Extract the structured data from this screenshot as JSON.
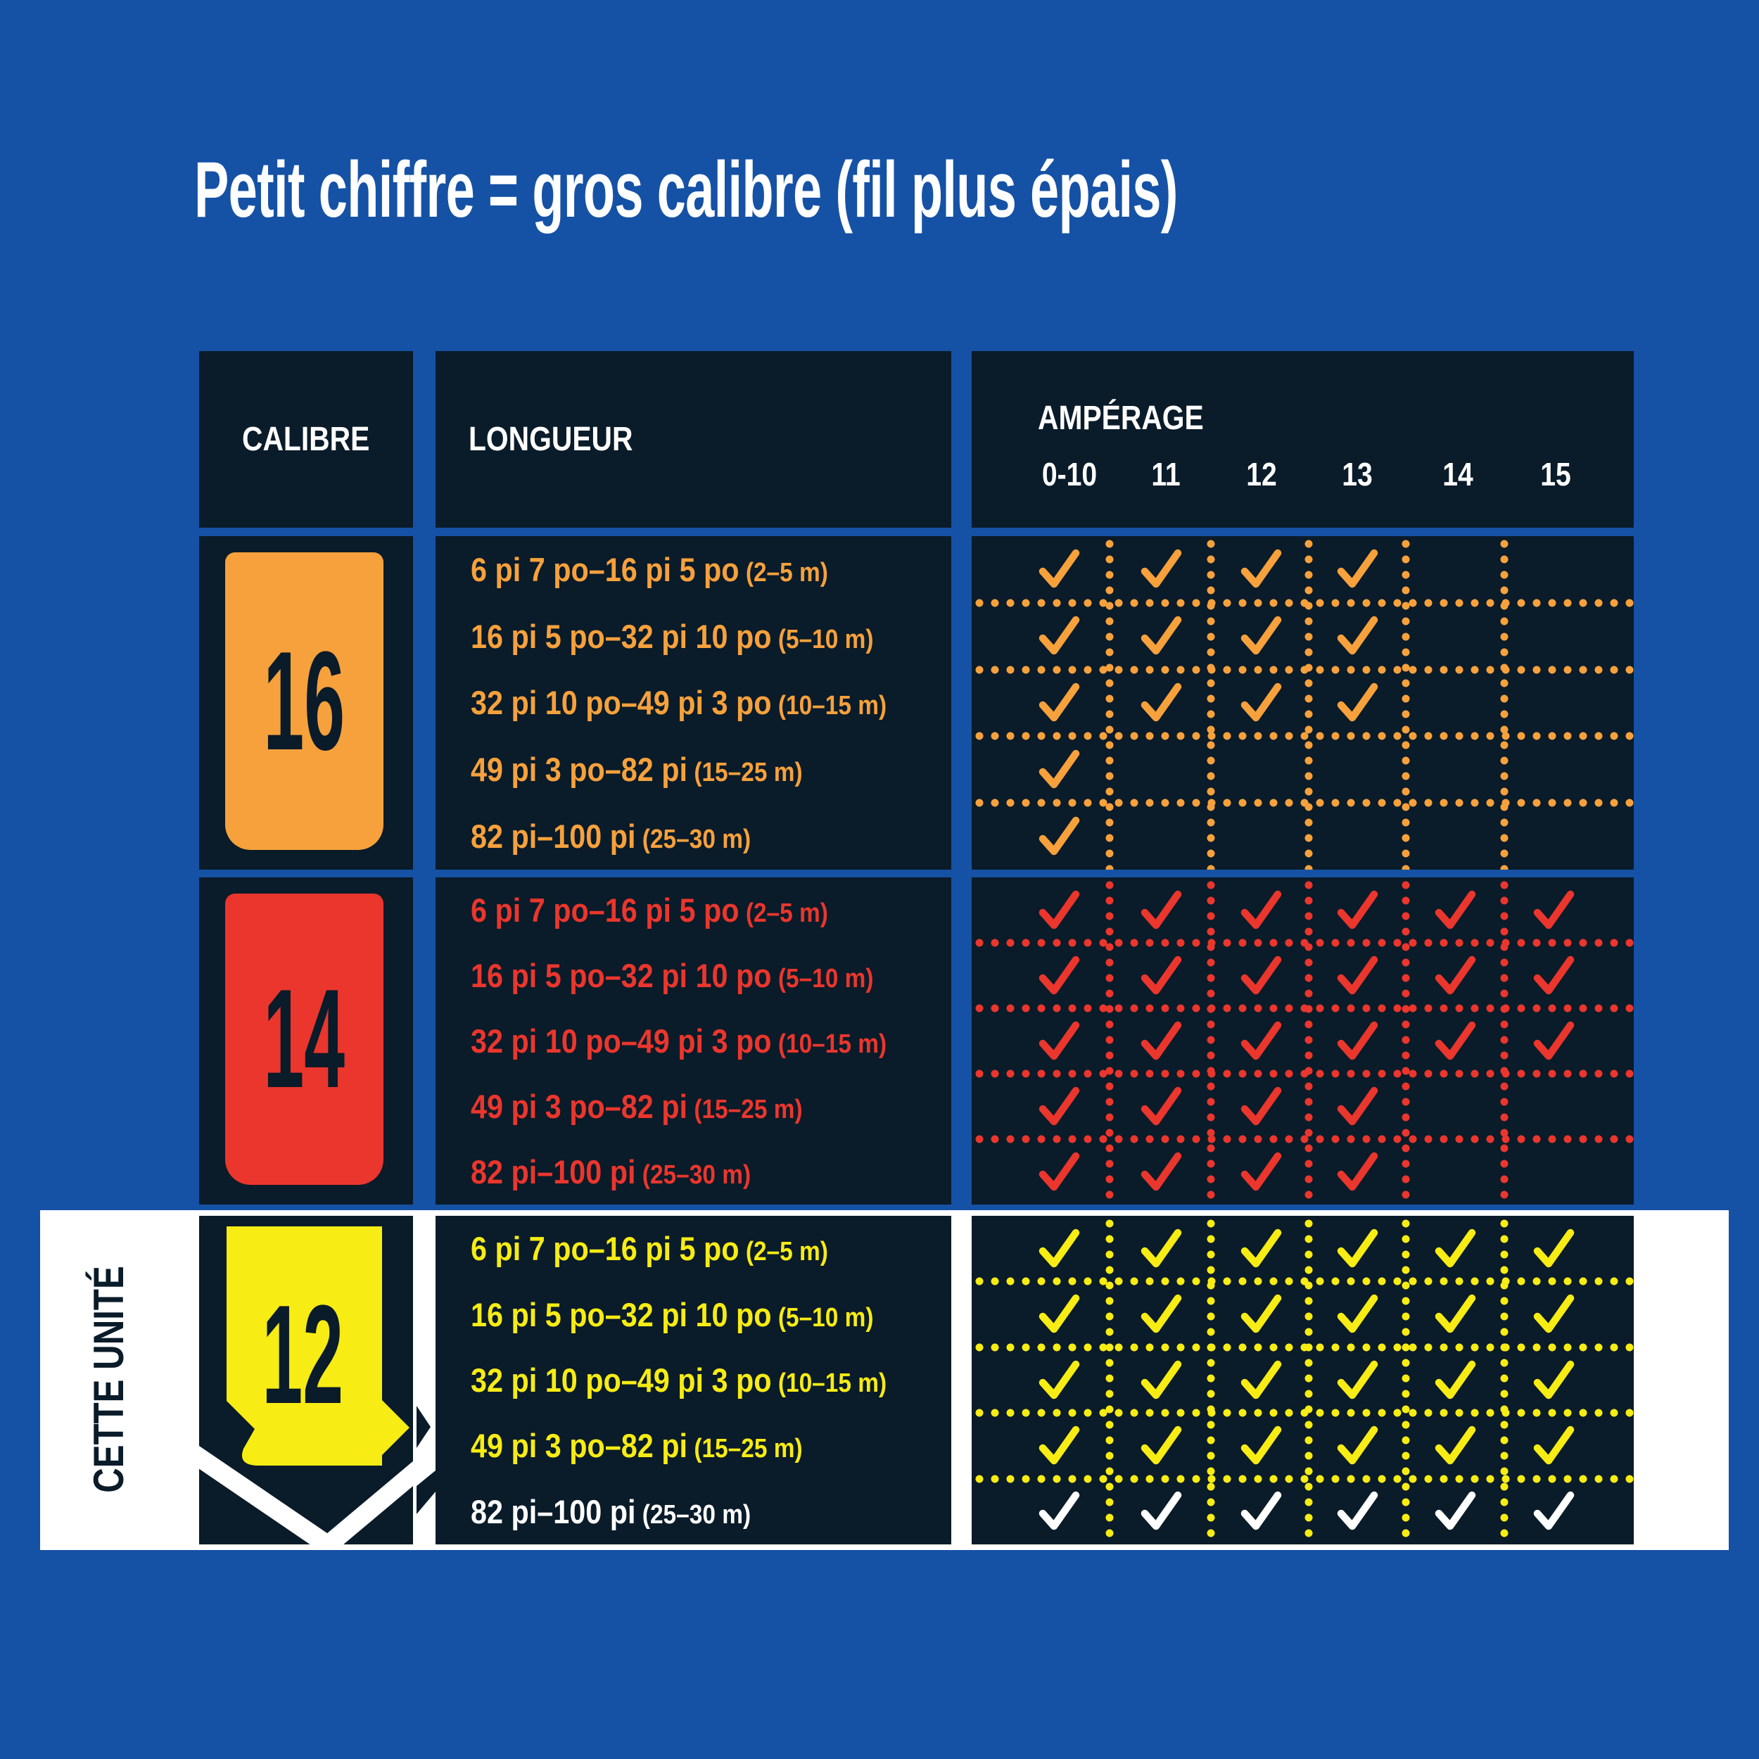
{
  "title": "Petit chiffre = gros calibre (fil plus épais)",
  "side_label": "CETTE UNITÉ",
  "colors": {
    "background": "#1552A6",
    "panel": "#0A1B29",
    "white": "#FFFFFF",
    "orange": "#F6A13C",
    "red": "#EA362D",
    "yellow": "#F7EC13"
  },
  "table": {
    "headers": {
      "calibre": "CALIBRE",
      "longueur": "LONGUEUR",
      "amperage": "AMPÉRAGE"
    },
    "amperage_columns": [
      "0-10",
      "11",
      "12",
      "13",
      "14",
      "15"
    ],
    "lengths": [
      {
        "main": "6 pi 7 po–16 pi 5 po",
        "metric": "(2–5 m)"
      },
      {
        "main": "16 pi 5 po–32 pi 10 po",
        "metric": "(5–10 m)"
      },
      {
        "main": "32 pi 10 po–49 pi 3 po",
        "metric": "(10–15 m)"
      },
      {
        "main": "49 pi 3 po–82 pi",
        "metric": "(15–25 m)"
      },
      {
        "main": "82 pi–100 pi",
        "metric": "(25–30 m)"
      }
    ],
    "gauges": [
      {
        "value": "16",
        "color": "#F6A13C",
        "highlight": false,
        "checks": [
          [
            1,
            1,
            1,
            1,
            0,
            0
          ],
          [
            1,
            1,
            1,
            1,
            0,
            0
          ],
          [
            1,
            1,
            1,
            1,
            0,
            0
          ],
          [
            1,
            0,
            0,
            0,
            0,
            0
          ],
          [
            1,
            0,
            0,
            0,
            0,
            0
          ]
        ]
      },
      {
        "value": "14",
        "color": "#EA362D",
        "highlight": false,
        "checks": [
          [
            1,
            1,
            1,
            1,
            1,
            1
          ],
          [
            1,
            1,
            1,
            1,
            1,
            1
          ],
          [
            1,
            1,
            1,
            1,
            1,
            1
          ],
          [
            1,
            1,
            1,
            1,
            0,
            0
          ],
          [
            1,
            1,
            1,
            1,
            0,
            0
          ]
        ]
      },
      {
        "value": "12",
        "color": "#F7EC13",
        "highlight": true,
        "last_row_color": "#FFFFFF",
        "checks": [
          [
            1,
            1,
            1,
            1,
            1,
            1
          ],
          [
            1,
            1,
            1,
            1,
            1,
            1
          ],
          [
            1,
            1,
            1,
            1,
            1,
            1
          ],
          [
            1,
            1,
            1,
            1,
            1,
            1
          ],
          [
            1,
            1,
            1,
            1,
            1,
            1
          ]
        ]
      }
    ]
  },
  "chart_data": {
    "type": "table",
    "title": "Petit chiffre = gros calibre (fil plus épais)",
    "columns_label": "AMPÉRAGE",
    "columns": [
      "0-10",
      "11",
      "12",
      "13",
      "14",
      "15"
    ],
    "row_label_1": "CALIBRE",
    "row_label_2": "LONGUEUR",
    "lengths": [
      "6 pi 7 po–16 pi 5 po (2–5 m)",
      "16 pi 5 po–32 pi 10 po (5–10 m)",
      "32 pi 10 po–49 pi 3 po (10–15 m)",
      "49 pi 3 po–82 pi (15–25 m)",
      "82 pi–100 pi (25–30 m)"
    ],
    "gauges": [
      {
        "gauge": "16",
        "allowed": [
          [
            1,
            1,
            1,
            1,
            0,
            0
          ],
          [
            1,
            1,
            1,
            1,
            0,
            0
          ],
          [
            1,
            1,
            1,
            1,
            0,
            0
          ],
          [
            1,
            0,
            0,
            0,
            0,
            0
          ],
          [
            1,
            0,
            0,
            0,
            0,
            0
          ]
        ]
      },
      {
        "gauge": "14",
        "allowed": [
          [
            1,
            1,
            1,
            1,
            1,
            1
          ],
          [
            1,
            1,
            1,
            1,
            1,
            1
          ],
          [
            1,
            1,
            1,
            1,
            1,
            1
          ],
          [
            1,
            1,
            1,
            1,
            0,
            0
          ],
          [
            1,
            1,
            1,
            1,
            0,
            0
          ]
        ]
      },
      {
        "gauge": "12",
        "allowed": [
          [
            1,
            1,
            1,
            1,
            1,
            1
          ],
          [
            1,
            1,
            1,
            1,
            1,
            1
          ],
          [
            1,
            1,
            1,
            1,
            1,
            1
          ],
          [
            1,
            1,
            1,
            1,
            1,
            1
          ],
          [
            1,
            1,
            1,
            1,
            1,
            1
          ]
        ],
        "highlighted_as_this_unit": true
      }
    ],
    "legend": "Checkmark = combination allowed; gauge 12 row highlighted with white band labeled CETTE UNITÉ"
  }
}
